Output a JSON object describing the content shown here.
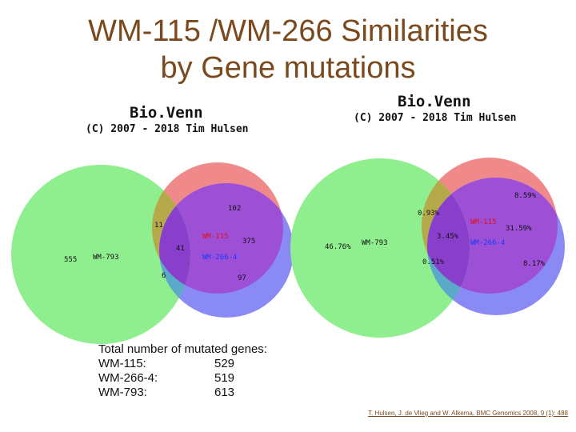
{
  "title": {
    "line1": "WM-115 /WM-266  Similarities",
    "line2": "by Gene mutations"
  },
  "left_diagram": {
    "brand": "Bio.Venn",
    "copyright": "(C) 2007 - 2018 Tim Hulsen",
    "labels": {
      "set_wm793": "WM-793",
      "set_wm115": "WM-115",
      "set_wm2664": "WM-266-4",
      "only_793": "555",
      "only_115": "102",
      "only_2664": "97",
      "wm115_wm2664": "375",
      "all_three": "41",
      "wm793_wm115": "11",
      "wm793_wm2664": "6"
    }
  },
  "right_diagram": {
    "brand": "Bio.Venn",
    "copyright": "(C) 2007 - 2018 Tim Hulsen",
    "labels": {
      "set_wm793": "WM-793",
      "set_wm115": "WM-115",
      "set_wm2664": "WM-266-4",
      "only_793": "46.76%",
      "only_115": "8.59%",
      "only_2664": "8.17%",
      "wm115_wm2664": "31.59%",
      "all_three": "3.45%",
      "wm793_wm115": "0.93%",
      "wm793_wm2664": "0.51%"
    }
  },
  "colors": {
    "wm793": "#8fef8f",
    "wm115": "#f08a8a",
    "wm2664": "#8a8af5",
    "overlap_all": "#8a3fcc",
    "set_label_red": "#e01010",
    "set_label_blue": "#1a3aff",
    "title": "#7a4a1e"
  },
  "totals": {
    "heading": "Total  number of mutated genes:",
    "rows": [
      {
        "label": "WM-115:",
        "value": "529"
      },
      {
        "label": "WM-266-4:",
        "value": "519"
      },
      {
        "label": "WM-793:",
        "value": "613"
      }
    ]
  },
  "citation": "T. Hulsen, J. de Vlieg and W. Alkema, BMC Genomics 2008, 9 (1): 488"
}
